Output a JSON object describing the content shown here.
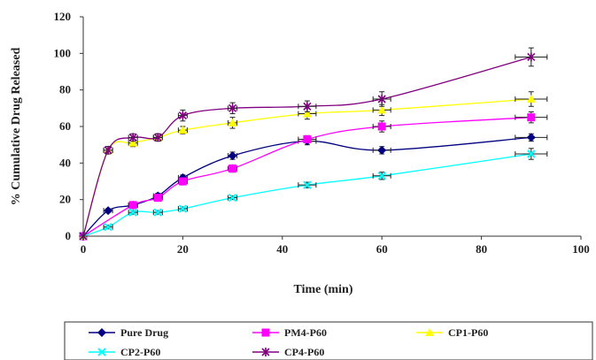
{
  "chart_data": {
    "type": "line",
    "xlabel": "Time (min)",
    "ylabel": "% Cumulative Drug Released",
    "xlim": [
      0,
      100
    ],
    "ylim": [
      0,
      120
    ],
    "xticks": [
      0,
      20,
      40,
      60,
      80,
      100
    ],
    "yticks": [
      0,
      20,
      40,
      60,
      80,
      100,
      120
    ],
    "grid": false,
    "legend_position": "bottom",
    "series": [
      {
        "name": "Pure Drug",
        "color": "#000080",
        "marker": "diamond",
        "x": [
          0,
          5,
          10,
          15,
          20,
          30,
          45,
          60,
          90
        ],
        "y": [
          0,
          14,
          17,
          22,
          32,
          44,
          52,
          47,
          54
        ],
        "err": [
          0,
          1,
          1.5,
          1.5,
          1.5,
          2,
          2,
          2,
          2
        ]
      },
      {
        "name": "PM4-P60",
        "color": "#ff00ff",
        "marker": "square",
        "x": [
          0,
          10,
          15,
          20,
          30,
          45,
          60,
          90
        ],
        "y": [
          0,
          17,
          21,
          30,
          37,
          53,
          60,
          65
        ],
        "err": [
          0,
          1,
          1.5,
          2,
          2,
          2,
          3,
          3
        ]
      },
      {
        "name": "CP1-P60",
        "color": "#ffff00",
        "marker": "triangle",
        "x": [
          0,
          5,
          10,
          15,
          20,
          30,
          45,
          60,
          90
        ],
        "y": [
          0,
          47,
          51,
          54,
          58,
          62,
          67,
          69,
          75
        ],
        "err": [
          0,
          2,
          2,
          2,
          2,
          3,
          3,
          3,
          4
        ]
      },
      {
        "name": "CP2-P60",
        "color": "#00ffff",
        "marker": "cross",
        "x": [
          0,
          5,
          10,
          15,
          20,
          30,
          45,
          60,
          90
        ],
        "y": [
          0,
          5,
          13,
          13,
          15,
          21,
          28,
          33,
          45
        ],
        "err": [
          0,
          1,
          1,
          1,
          1,
          1,
          1.5,
          2,
          3
        ]
      },
      {
        "name": "CP4-P60",
        "color": "#800080",
        "marker": "star",
        "x": [
          0,
          5,
          10,
          15,
          20,
          30,
          45,
          60,
          90
        ],
        "y": [
          0,
          47,
          54,
          54,
          66,
          70,
          71,
          75,
          98
        ],
        "err": [
          0,
          2,
          2,
          2,
          3,
          3,
          3,
          4,
          5
        ]
      }
    ]
  }
}
